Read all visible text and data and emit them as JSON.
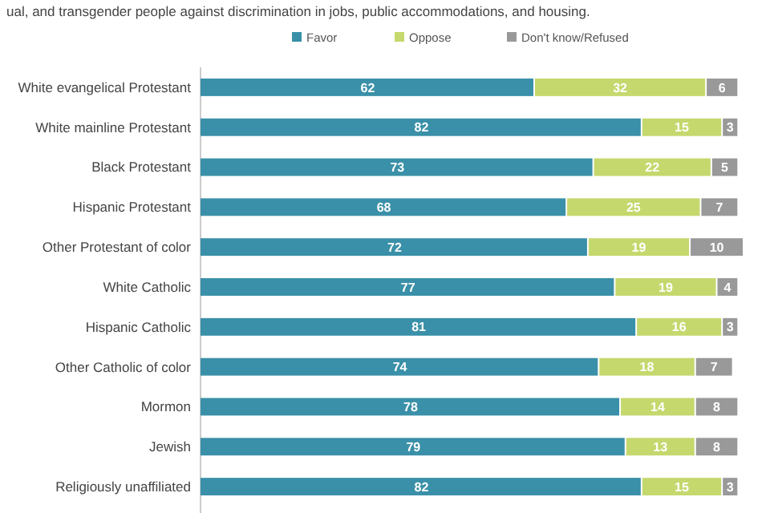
{
  "chart_data": {
    "type": "bar",
    "orientation": "horizontal",
    "stacked": true,
    "title": "ual, and transgender people against discrimination in jobs, public accommodations, and housing.",
    "categories": [
      "White evangelical Protestant",
      "White mainline Protestant",
      "Black Protestant",
      "Hispanic Protestant",
      "Other Protestant of color",
      "White Catholic",
      "Hispanic Catholic",
      "Other Catholic of color",
      "Mormon",
      "Jewish",
      "Religiously unaffiliated"
    ],
    "series": [
      {
        "name": "Favor",
        "color": "#3a90a8",
        "values": [
          62,
          82,
          73,
          68,
          72,
          77,
          81,
          74,
          78,
          79,
          82
        ]
      },
      {
        "name": "Oppose",
        "color": "#c5d86d",
        "values": [
          32,
          15,
          22,
          25,
          19,
          19,
          16,
          18,
          14,
          13,
          15
        ]
      },
      {
        "name": "Don't know/Refused",
        "color": "#999999",
        "values": [
          6,
          3,
          5,
          7,
          10,
          4,
          3,
          7,
          8,
          8,
          3
        ]
      }
    ],
    "xlim": [
      0,
      101
    ],
    "tick_labels": "y",
    "data_labels": true,
    "legend": "top"
  }
}
